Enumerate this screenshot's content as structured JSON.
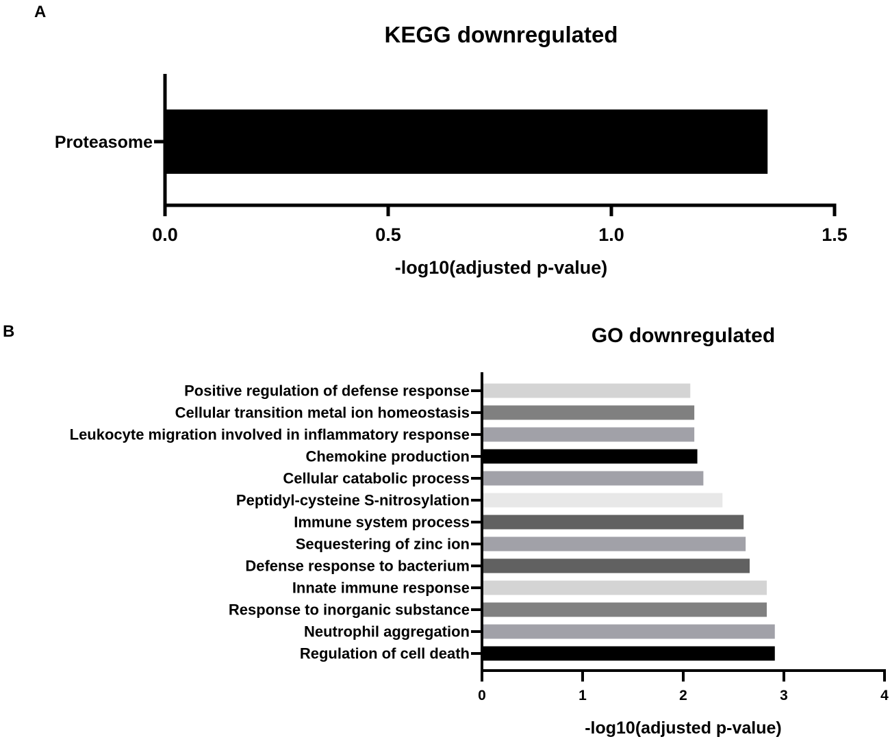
{
  "panels": [
    {
      "letter": "A",
      "title": "KEGG downregulated",
      "xlabel": "-log10(adjusted p-value)",
      "ylabel": "",
      "type": "bar",
      "orientation": "horizontal",
      "xlim": [
        0,
        1.5
      ],
      "ticks": [
        0,
        0.5,
        1,
        1.5
      ],
      "tick_labels": [
        "0.0",
        "0.5",
        "1.0",
        "1.5"
      ],
      "categories": [
        "Proteasome"
      ],
      "values": [
        1.35
      ],
      "colors": [
        "#000000"
      ]
    },
    {
      "letter": "B",
      "title": "GO downregulated",
      "xlabel": "-log10(adjusted p-value)",
      "ylabel": "",
      "type": "bar",
      "orientation": "horizontal",
      "xlim": [
        0,
        4
      ],
      "ticks": [
        0,
        1,
        2,
        3,
        4
      ],
      "tick_labels": [
        "0",
        "1",
        "2",
        "3",
        "4"
      ],
      "categories": [
        "Positive regulation of defense response",
        "Cellular transition metal ion homeostasis",
        "Leukocyte migration involved in inflammatory response",
        "Chemokine production",
        "Cellular catabolic process",
        "Peptidyl-cysteine S-nitrosylation",
        "Immune system process",
        "Sequestering of zinc ion",
        "Defense response to bacterium",
        "Innate immune response",
        "Response to inorganic substance",
        "Neutrophil aggregation",
        "Regulation of cell death"
      ],
      "values": [
        2.07,
        2.11,
        2.11,
        2.14,
        2.2,
        2.39,
        2.6,
        2.62,
        2.66,
        2.83,
        2.83,
        2.91,
        2.91
      ],
      "colors": [
        "#d4d4d4",
        "#808080",
        "#a1a1a8",
        "#000000",
        "#a1a1a8",
        "#e8e8e8",
        "#616161",
        "#a1a1a8",
        "#616161",
        "#d4d4d4",
        "#808080",
        "#a1a1a8",
        "#000000"
      ]
    }
  ]
}
